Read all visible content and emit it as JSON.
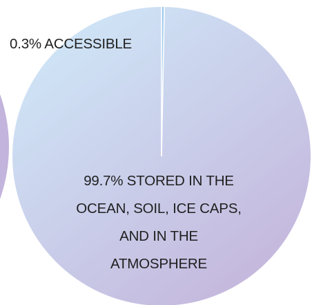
{
  "chart_data": {
    "type": "pie",
    "title": "",
    "slices": [
      {
        "label": "0.3% ACCESSIBLE",
        "value": 0.3,
        "color": "#9ecbec"
      },
      {
        "label": "99.7% STORED IN THE OCEAN, SOIL, ICE CAPS, AND IN THE ATMOSPHERE",
        "value": 99.7,
        "color": "#c9c2e3"
      }
    ],
    "label_lines": {
      "small": [
        "0.3% ACCESSIBLE"
      ],
      "large": [
        "99.7% STORED IN THE",
        "OCEAN, SOIL, ICE CAPS,",
        "AND IN THE",
        "ATMOSPHERE"
      ]
    },
    "colors": {
      "gradient_start": "#cfe6f7",
      "gradient_end": "#c4b6dc",
      "edge_circle": "#c2b4dc",
      "accessible_slice": "#9ecbec",
      "separator": "#ffffff"
    }
  }
}
